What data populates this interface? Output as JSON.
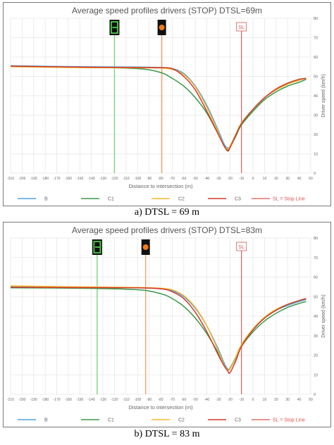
{
  "colors": {
    "B": "#4aa3df",
    "C1": "#3a9a4a",
    "C2": "#f5b731",
    "C3": "#d23a2a",
    "stop_line": "#d9534f",
    "green_marker": "#6cd86c",
    "orange_marker": "#f0a05a",
    "grid": "#e6e6e6",
    "axis_text": "#666666",
    "title_text": "#555555"
  },
  "icons": [
    "green-traffic-light-icon",
    "amber-traffic-light-icon",
    "stop-line-sign-icon"
  ],
  "captions": [
    "a) DTSL = 69 m",
    "b) DTSL = 83 m"
  ],
  "chart_data": [
    {
      "type": "line",
      "title": "Average speed profiles drivers (STOP) DTSL=69m",
      "xlabel": "Distance to intersection (m)",
      "ylabel": "Driver speed (km/h)",
      "xlim": [
        -210,
        50
      ],
      "ylim": [
        0,
        80
      ],
      "xticks": [
        -210,
        -200,
        -190,
        -180,
        -170,
        -160,
        -150,
        -140,
        -130,
        -120,
        -110,
        -100,
        -90,
        -80,
        -70,
        -60,
        -50,
        -40,
        -30,
        -20,
        -10,
        0,
        10,
        20,
        30,
        40,
        50
      ],
      "yticks": [
        0,
        10,
        20,
        30,
        40,
        50,
        60,
        70,
        80
      ],
      "grid": true,
      "legend_position": "bottom",
      "stop_line_label": "SL",
      "legend_stop_line": "SL = Stop Line",
      "markers": {
        "green_x": -120,
        "orange_x": -79,
        "stop_x": -10
      },
      "series": [
        {
          "name": "B",
          "x": [
            -210,
            -150,
            -100,
            -80,
            -70,
            -60,
            -50,
            -40,
            -30,
            -25,
            -22,
            -20,
            -15,
            -10,
            0,
            10,
            20,
            30,
            40,
            46
          ],
          "y": [
            55.5,
            55,
            54.8,
            54.6,
            54,
            51.5,
            45,
            35,
            22,
            15,
            13,
            14,
            20,
            26,
            33,
            39,
            43,
            46,
            48,
            49
          ]
        },
        {
          "name": "C1",
          "x": [
            -210,
            -150,
            -100,
            -80,
            -70,
            -60,
            -50,
            -40,
            -30,
            -25,
            -22,
            -20,
            -15,
            -10,
            0,
            10,
            20,
            30,
            40,
            46
          ],
          "y": [
            55,
            54.7,
            54,
            52,
            49,
            45,
            39,
            31,
            20,
            14,
            12,
            13.5,
            19,
            25,
            32,
            38,
            42,
            45,
            47,
            48.5
          ]
        },
        {
          "name": "C2",
          "x": [
            -210,
            -150,
            -100,
            -80,
            -70,
            -60,
            -50,
            -40,
            -30,
            -25,
            -22,
            -20,
            -15,
            -10,
            0,
            10,
            20,
            30,
            40,
            46
          ],
          "y": [
            55,
            54.5,
            54.4,
            54.3,
            53.6,
            51,
            44.5,
            34,
            21,
            14,
            12.5,
            14,
            20,
            26,
            33,
            39,
            43,
            46,
            48,
            49
          ]
        },
        {
          "name": "C3",
          "x": [
            -210,
            -150,
            -100,
            -80,
            -70,
            -60,
            -50,
            -40,
            -30,
            -25,
            -22,
            -20,
            -15,
            -10,
            0,
            10,
            20,
            30,
            40,
            46
          ],
          "y": [
            55.3,
            54.8,
            54.6,
            54.5,
            54,
            50,
            43,
            32,
            20,
            14,
            11.5,
            13,
            19.5,
            25.5,
            33,
            39,
            43.5,
            46.5,
            48.5,
            49
          ]
        }
      ]
    },
    {
      "type": "line",
      "title": "Average speed profiles drivers (STOP) DTSL=83m",
      "xlabel": "Distance to intersection (m)",
      "ylabel": "Driver speed (km/h)",
      "xlim": [
        -210,
        50
      ],
      "ylim": [
        0,
        80
      ],
      "xticks": [
        -210,
        -200,
        -190,
        -180,
        -170,
        -160,
        -150,
        -140,
        -130,
        -120,
        -110,
        -100,
        -90,
        -80,
        -70,
        -60,
        -50,
        -40,
        -30,
        -20,
        -10,
        0,
        10,
        20,
        30,
        40,
        50
      ],
      "yticks": [
        0,
        10,
        20,
        30,
        40,
        50,
        60,
        70,
        80
      ],
      "grid": true,
      "legend_position": "bottom",
      "stop_line_label": "SL",
      "legend_stop_line": "SL = Stop Line",
      "markers": {
        "green_x": -135,
        "orange_x": -93,
        "stop_x": -10
      },
      "series": [
        {
          "name": "B",
          "x": [
            -210,
            -150,
            -100,
            -80,
            -70,
            -60,
            -50,
            -40,
            -30,
            -25,
            -22,
            -20,
            -15,
            -10,
            0,
            10,
            20,
            30,
            40,
            46
          ],
          "y": [
            55,
            54.8,
            54.5,
            54,
            53,
            50,
            44,
            35,
            23,
            16,
            13,
            13.5,
            19,
            25,
            33,
            39,
            43,
            45.5,
            47.5,
            48.5
          ]
        },
        {
          "name": "C1",
          "x": [
            -210,
            -150,
            -100,
            -80,
            -70,
            -60,
            -50,
            -40,
            -30,
            -25,
            -22,
            -20,
            -15,
            -10,
            0,
            10,
            20,
            30,
            40,
            46
          ],
          "y": [
            54.5,
            54.3,
            53.5,
            51.5,
            49,
            45,
            39,
            31,
            21,
            15,
            12.5,
            13,
            18.5,
            24.5,
            32,
            37.5,
            41.5,
            44.5,
            46.5,
            47.5
          ]
        },
        {
          "name": "C2",
          "x": [
            -210,
            -150,
            -100,
            -80,
            -70,
            -60,
            -50,
            -40,
            -30,
            -25,
            -22,
            -20,
            -15,
            -10,
            0,
            10,
            20,
            30,
            40,
            46
          ],
          "y": [
            55.5,
            55,
            54.7,
            54.3,
            53.5,
            50.5,
            44.5,
            35,
            22,
            15,
            12.5,
            13,
            19,
            25.5,
            33.5,
            39.5,
            43.5,
            46,
            48,
            49
          ]
        },
        {
          "name": "C3",
          "x": [
            -210,
            -150,
            -100,
            -80,
            -70,
            -60,
            -50,
            -40,
            -30,
            -25,
            -22,
            -20,
            -15,
            -10,
            0,
            10,
            20,
            30,
            40,
            46
          ],
          "y": [
            54.8,
            54.6,
            54.5,
            54,
            52.5,
            49,
            42,
            32,
            20,
            14.5,
            12,
            11,
            17,
            24.5,
            33,
            39,
            43,
            46,
            48,
            49
          ]
        }
      ]
    }
  ]
}
